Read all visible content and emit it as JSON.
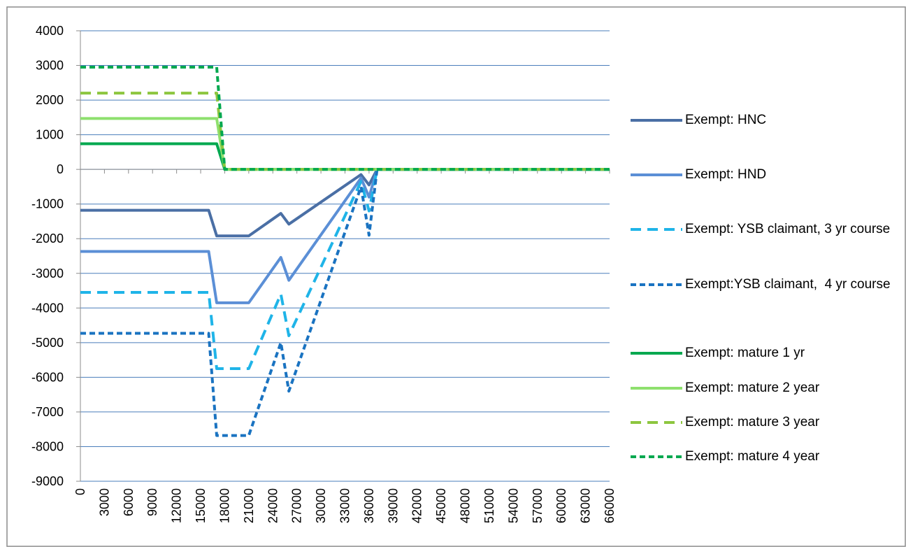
{
  "chart_data": {
    "type": "line",
    "x": [
      0,
      16000,
      17000,
      18000,
      21000,
      25000,
      26000,
      35000,
      36000,
      37000,
      66000
    ],
    "series": [
      {
        "name": "Exempt: HNC",
        "color": "#4a6fa5",
        "dash": "solid",
        "values": [
          -1180,
          -1180,
          -1920,
          -1920,
          -1920,
          -1270,
          -1580,
          -150,
          -450,
          0,
          0
        ]
      },
      {
        "name": "Exempt: HND",
        "color": "#5b8fd6",
        "dash": "solid",
        "values": [
          -2370,
          -2370,
          -3850,
          -3850,
          -3850,
          -2540,
          -3200,
          -250,
          -800,
          0,
          0
        ]
      },
      {
        "name": "Exempt: YSB claimant, 3 yr course",
        "color": "#1fb4e8",
        "dash": "long",
        "values": [
          -3550,
          -3550,
          -5750,
          -5750,
          -5750,
          -3600,
          -4800,
          -350,
          -1200,
          0,
          0
        ]
      },
      {
        "name": "Exempt:YSB claimant,  4 yr course",
        "color": "#1a73c1",
        "dash": "short",
        "values": [
          -4730,
          -4730,
          -7680,
          -7680,
          -7680,
          -5000,
          -6400,
          -500,
          -1900,
          0,
          0
        ]
      },
      {
        "name": "Exempt: mature 1 yr",
        "color": "#00a84f",
        "dash": "solid",
        "values": [
          740,
          740,
          740,
          0,
          0,
          0,
          0,
          0,
          0,
          0,
          0
        ]
      },
      {
        "name": "Exempt: mature 2 year",
        "color": "#8ee06e",
        "dash": "solid",
        "values": [
          1470,
          1470,
          1470,
          0,
          0,
          0,
          0,
          0,
          0,
          0,
          0
        ]
      },
      {
        "name": "Exempt: mature 3 year",
        "color": "#8dc63f",
        "dash": "long",
        "values": [
          2200,
          2200,
          2200,
          0,
          0,
          0,
          0,
          0,
          0,
          0,
          0
        ]
      },
      {
        "name": "Exempt: mature 4 year",
        "color": "#00a84f",
        "dash": "short",
        "values": [
          2950,
          2950,
          2950,
          0,
          0,
          0,
          0,
          0,
          0,
          0,
          0
        ]
      }
    ],
    "xlim": [
      0,
      66000
    ],
    "xticks": [
      0,
      3000,
      6000,
      9000,
      12000,
      15000,
      18000,
      21000,
      24000,
      27000,
      30000,
      33000,
      36000,
      39000,
      42000,
      45000,
      48000,
      51000,
      54000,
      57000,
      60000,
      63000,
      66000
    ],
    "ylim": [
      -9000,
      4000
    ],
    "yticks": [
      -9000,
      -8000,
      -7000,
      -6000,
      -5000,
      -4000,
      -3000,
      -2000,
      -1000,
      0,
      1000,
      2000,
      3000,
      4000
    ],
    "grid": true,
    "legend": "right"
  }
}
